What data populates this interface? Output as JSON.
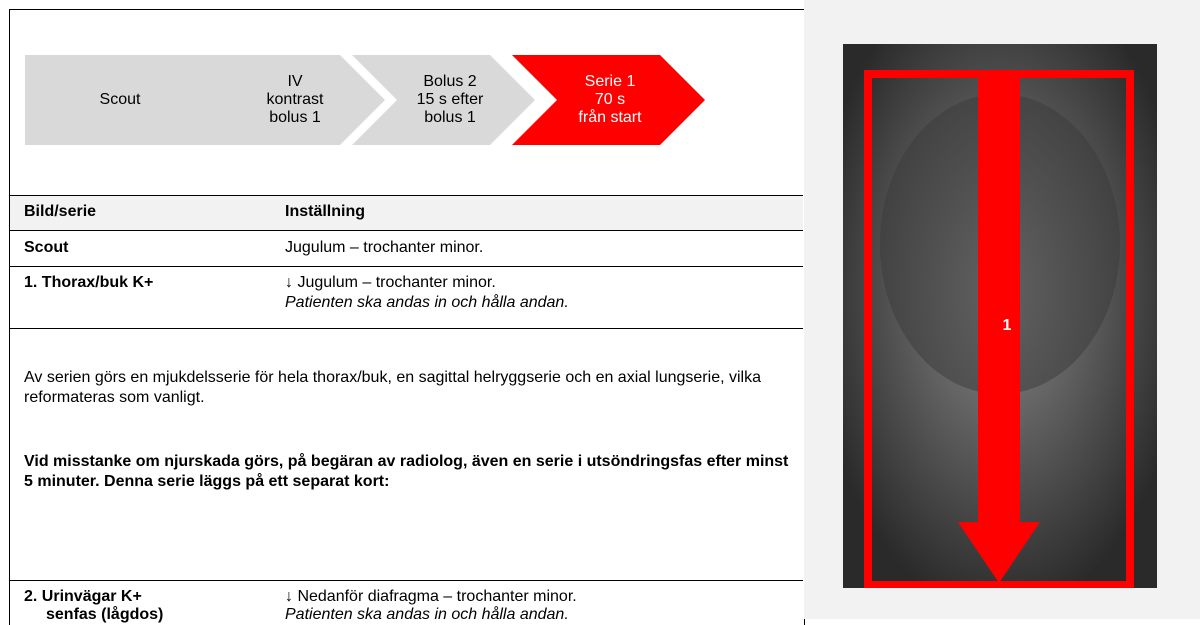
{
  "steps": [
    {
      "lines": [
        "Scout"
      ]
    },
    {
      "lines": [
        "IV",
        "kontrast",
        "bolus 1"
      ]
    },
    {
      "lines": [
        "Bolus 2",
        "15 s efter",
        "bolus 1"
      ]
    },
    {
      "lines": [
        "Serie 1",
        "70 s",
        "från start"
      ]
    }
  ],
  "table": {
    "header": [
      "Bild/serie",
      "Inställning"
    ],
    "rows": [
      {
        "series": [
          "Scout"
        ],
        "setting": [
          "Jugulum – trochanter minor."
        ]
      },
      {
        "series": [
          "1. Thorax/buk K+"
        ],
        "setting": [
          "↓ Jugulum – trochanter minor.",
          "Patienten ska andas in och hålla andan."
        ]
      }
    ],
    "notes": [
      "Av serien görs en mjukdelsserie för hela thorax/buk, en sagittal helryggserie och en axial lungserie, vilka reformateras som vanligt.",
      "Vid misstanke om njurskada görs, på begäran av radiolog, även en serie i utsöndringsfas efter minst 5 minuter. Denna serie läggs på ett separat kort:"
    ],
    "last_row": {
      "series": [
        "2. Urinvägar K+",
        "senfas (lågdos)"
      ],
      "setting": [
        "↓ Nedanför diafragma – trochanter minor.",
        "Patienten ska andas in och hålla andan."
      ]
    }
  },
  "image": {
    "label": "1"
  }
}
